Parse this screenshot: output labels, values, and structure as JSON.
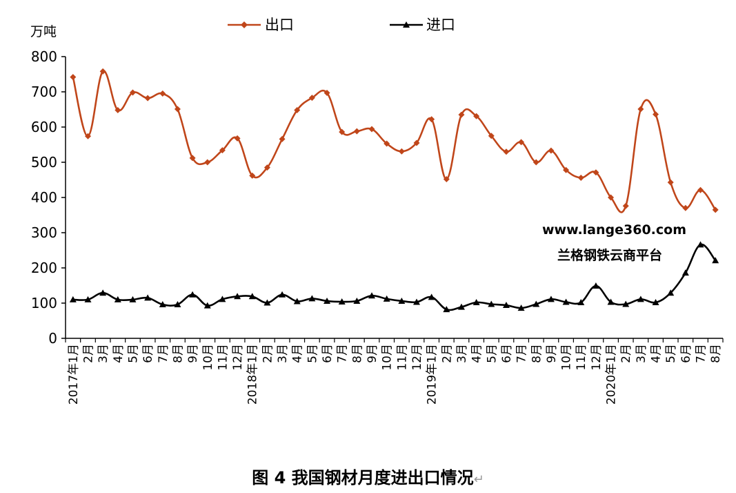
{
  "chart_data": {
    "type": "line",
    "ylabel": "万吨",
    "ylim": [
      0,
      800
    ],
    "yticks": [
      0,
      100,
      200,
      300,
      400,
      500,
      600,
      700,
      800
    ],
    "categories": [
      "2017年1月",
      "2月",
      "3月",
      "4月",
      "5月",
      "6月",
      "7月",
      "8月",
      "9月",
      "10月",
      "11月",
      "12月",
      "2018年1月",
      "2月",
      "3月",
      "4月",
      "5月",
      "6月",
      "7月",
      "8月",
      "9月",
      "10月",
      "11月",
      "12月",
      "2019年1月",
      "2月",
      "3月",
      "4月",
      "5月",
      "6月",
      "7月",
      "8月",
      "9月",
      "10月",
      "11月",
      "12月",
      "2020年1月",
      "2月",
      "3月",
      "4月",
      "5月",
      "6月",
      "7月",
      "8月"
    ],
    "series": [
      {
        "name": "出口",
        "color": "#c0461a",
        "marker": "diamond",
        "values": [
          742,
          574,
          758,
          648,
          698,
          682,
          695,
          651,
          512,
          500,
          534,
          568,
          462,
          485,
          566,
          648,
          683,
          697,
          586,
          588,
          594,
          553,
          531,
          555,
          622,
          452,
          635,
          631,
          575,
          530,
          557,
          500,
          533,
          478,
          456,
          471,
          400,
          376,
          651,
          636,
          443,
          370,
          421,
          365
        ]
      },
      {
        "name": "进口",
        "color": "#000000",
        "marker": "triangle",
        "values": [
          110,
          110,
          129,
          110,
          110,
          115,
          96,
          96,
          124,
          93,
          111,
          119,
          119,
          101,
          124,
          105,
          113,
          106,
          104,
          106,
          121,
          112,
          106,
          103,
          117,
          82,
          89,
          102,
          97,
          94,
          86,
          97,
          111,
          103,
          102,
          149,
          103,
          97,
          111,
          102,
          129,
          186,
          266,
          221
        ]
      }
    ],
    "legend_position": "top-center",
    "grid": false,
    "watermark": [
      "www.lange360.com",
      "兰格钢铁云商平台"
    ]
  },
  "caption": {
    "text": "图 4  我国钢材月度进出口情况",
    "return_mark": "↵"
  }
}
